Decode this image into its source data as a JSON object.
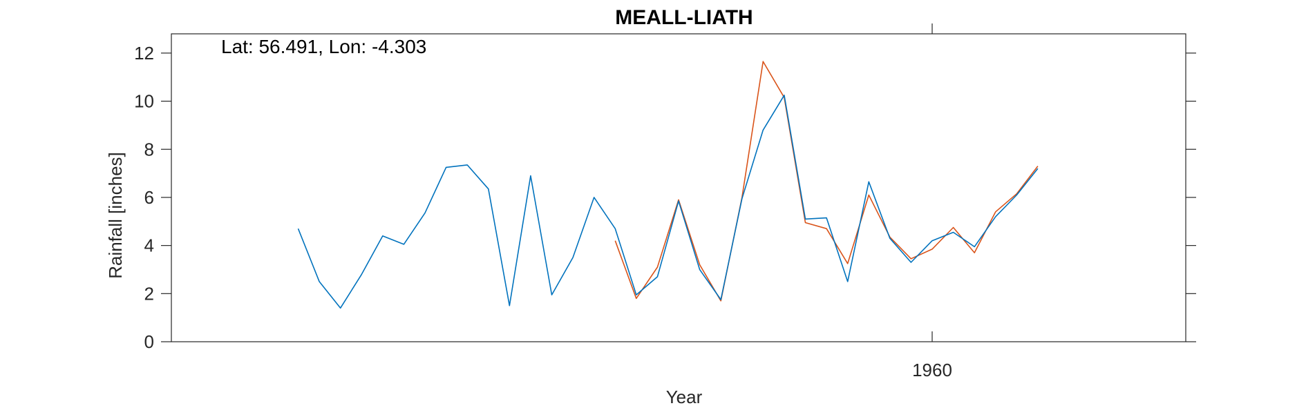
{
  "chart_data": {
    "type": "line",
    "title": "MEALL-LIATH",
    "annotation": "Lat: 56.491, Lon: -4.303",
    "xlabel": "Year",
    "ylabel": "Rainfall [inches]",
    "xlim": [
      1924,
      1972
    ],
    "ylim": [
      0,
      12.8
    ],
    "yticks": [
      0,
      2,
      4,
      6,
      8,
      10,
      12
    ],
    "xticks": [
      1960
    ],
    "grid": false,
    "colors": {
      "blue": "#0072BD",
      "orange": "#D95319",
      "axis": "#262626"
    },
    "series": [
      {
        "color": "#0072BD",
        "x": [
          1930,
          1931,
          1932,
          1933,
          1934,
          1935,
          1936,
          1937,
          1938,
          1939,
          1940,
          1941,
          1942,
          1943,
          1944,
          1945,
          1946,
          1947,
          1948,
          1949,
          1950,
          1951,
          1952,
          1953,
          1954,
          1955,
          1956,
          1957,
          1958,
          1959,
          1960,
          1961,
          1962,
          1963,
          1964,
          1965,
          1966
        ],
        "y": [
          4.7,
          2.5,
          1.4,
          2.8,
          4.4,
          4.05,
          5.35,
          7.25,
          7.35,
          6.35,
          1.5,
          6.9,
          1.95,
          3.5,
          6.0,
          4.7,
          1.95,
          2.7,
          5.85,
          3.0,
          1.75,
          5.95,
          8.8,
          10.25,
          5.1,
          5.15,
          2.5,
          6.65,
          4.3,
          3.3,
          4.2,
          4.55,
          3.95,
          5.2,
          6.1,
          7.2,
          null
        ]
      },
      {
        "color": "#D95319",
        "x": [
          1945,
          1946,
          1947,
          1948,
          1949,
          1950,
          1951,
          1952,
          1953,
          1954,
          1955,
          1956,
          1957,
          1958,
          1959,
          1960,
          1961,
          1962,
          1963,
          1964,
          1965
        ],
        "y": [
          4.2,
          1.8,
          3.1,
          5.9,
          3.2,
          1.7,
          6.0,
          11.65,
          10.15,
          4.95,
          4.7,
          3.25,
          6.1,
          4.35,
          3.45,
          3.85,
          4.75,
          3.7,
          5.4,
          6.15,
          7.3
        ]
      }
    ]
  }
}
